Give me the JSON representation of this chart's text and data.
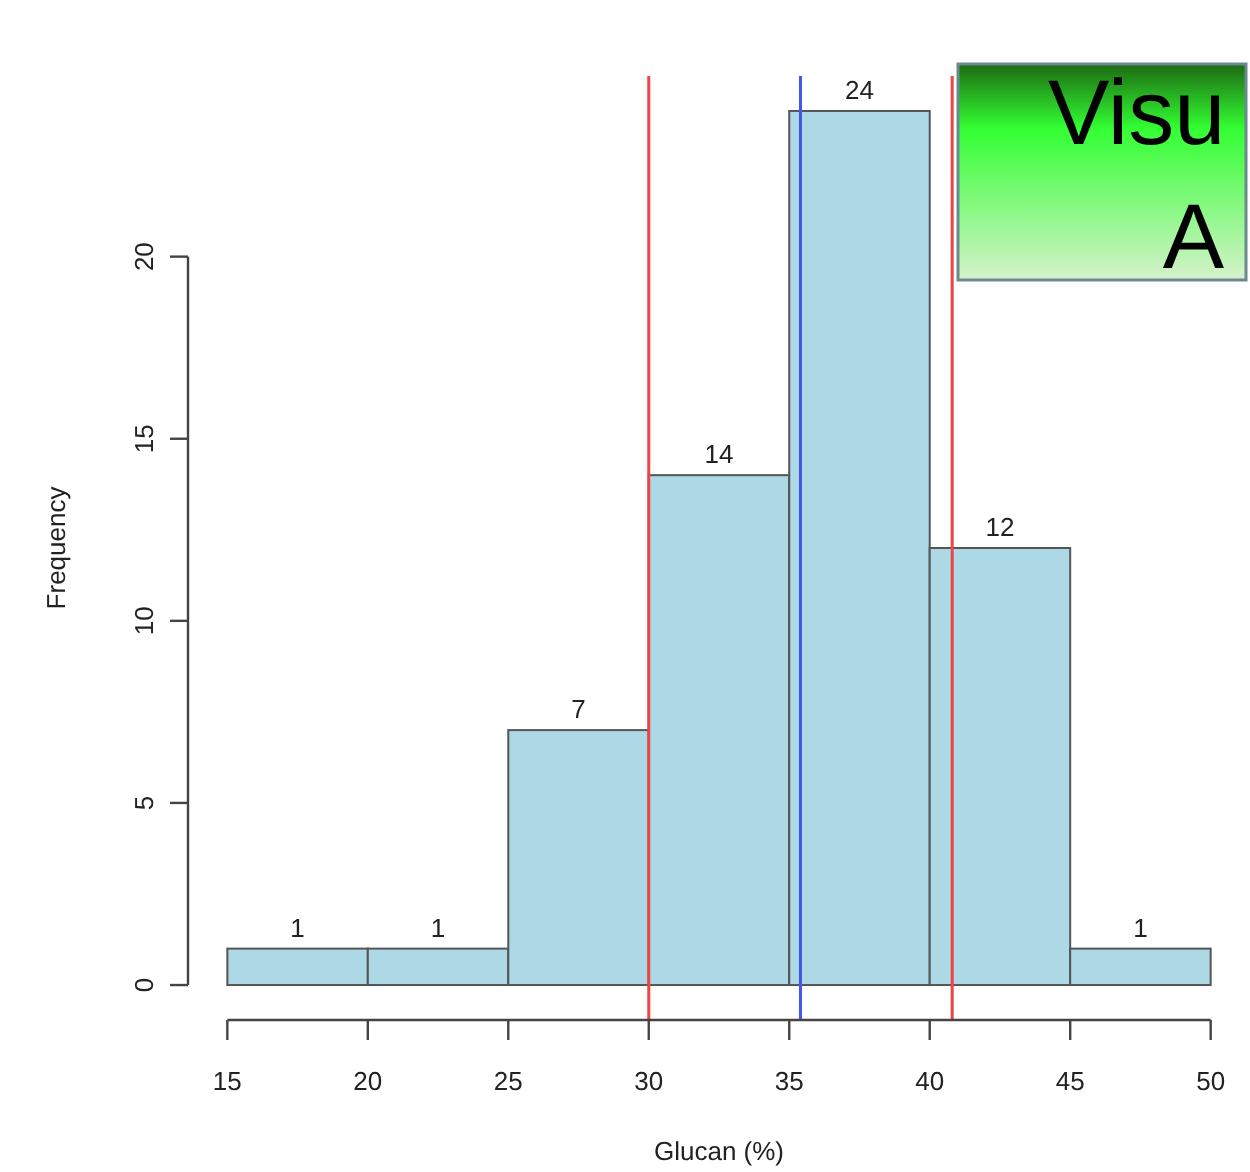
{
  "chart_data": {
    "type": "histogram",
    "xlabel": "Glucan (%)",
    "ylabel": "Frequency",
    "bins": [
      15,
      20,
      25,
      30,
      35,
      40,
      45,
      50
    ],
    "values": [
      1,
      1,
      7,
      14,
      24,
      12,
      1
    ],
    "color": "#add8e6",
    "xlim": [
      13.6,
      51.4
    ],
    "xticks": [
      15,
      20,
      25,
      30,
      35,
      40,
      45,
      50
    ],
    "ylim": [
      -0.96,
      24.96
    ],
    "yticks": [
      0,
      5,
      10,
      15,
      20
    ],
    "data_labels": true,
    "grid": false,
    "ref_lines": [
      {
        "axis": "x",
        "value": 30,
        "color": "#ee4444"
      },
      {
        "axis": "x",
        "value": 35.4,
        "color": "#4455ee"
      },
      {
        "axis": "x",
        "value": 40.8,
        "color": "#ee4444"
      }
    ],
    "annotations": [
      "Visu",
      "A"
    ]
  }
}
